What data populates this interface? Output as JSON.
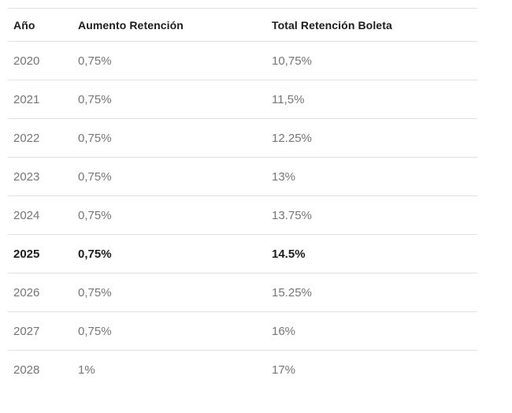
{
  "colors": {
    "bg": "#ffffff",
    "border": "#e0e0e0",
    "header_text": "#1d1d1d",
    "row_text": "#757575",
    "highlight_text": "#1d1d1d"
  },
  "chart_data": {
    "type": "table",
    "title": "",
    "columns": [
      "Año",
      "Aumento Retención",
      "Total Retención Boleta"
    ],
    "rows": [
      [
        "2020",
        "0,75%",
        "10,75%"
      ],
      [
        "2021",
        "0,75%",
        "11,5%"
      ],
      [
        "2022",
        "0,75%",
        "12.25%"
      ],
      [
        "2023",
        "0,75%",
        "13%"
      ],
      [
        "2024",
        "0,75%",
        "13.75%"
      ],
      [
        "2025",
        "0,75%",
        "14.5%"
      ],
      [
        "2026",
        "0,75%",
        "15.25%"
      ],
      [
        "2027",
        "0,75%",
        "16%"
      ],
      [
        "2028",
        "1%",
        "17%"
      ]
    ],
    "highlighted_row": "2025",
    "layout": {
      "grid": "horizontal-row-dividers-only",
      "bottom_border": false
    }
  }
}
